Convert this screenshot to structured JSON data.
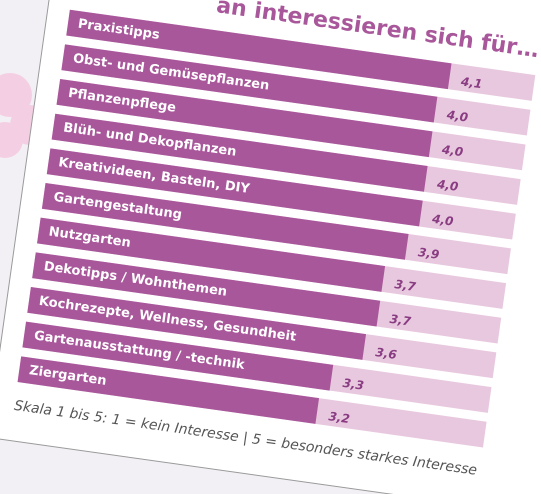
{
  "chart_data": {
    "type": "bar",
    "orientation": "horizontal",
    "title": "an interessieren sich für…",
    "footnote": "Skala 1 bis 5:  1 = kein Interesse | 5 = besonders starkes Interesse",
    "categories": [
      "Praxistipps",
      "Obst- und Gemüsepflanzen",
      "Pflanzenpflege",
      "Blüh- und Dekopflanzen",
      "Kreativideen, Basteln, DIY",
      "Gartengestaltung",
      "Nutzgarten",
      "Dekotipps / Wohnthemen",
      "Kochrezepte, Wellness, Gesundheit",
      "Gartenausstattung / -technik",
      "Ziergarten"
    ],
    "values": [
      4.1,
      4.0,
      4.0,
      4.0,
      4.0,
      3.9,
      3.7,
      3.7,
      3.6,
      3.3,
      3.2
    ],
    "value_labels": [
      "4,1",
      "4,0",
      "4,0",
      "4,0",
      "4,0",
      "3,9",
      "3,7",
      "3,7",
      "3,6",
      "3,3",
      "3,2"
    ],
    "color": "#a9579b",
    "track_color": "#e8c8df",
    "xlim": [
      0,
      5
    ]
  }
}
